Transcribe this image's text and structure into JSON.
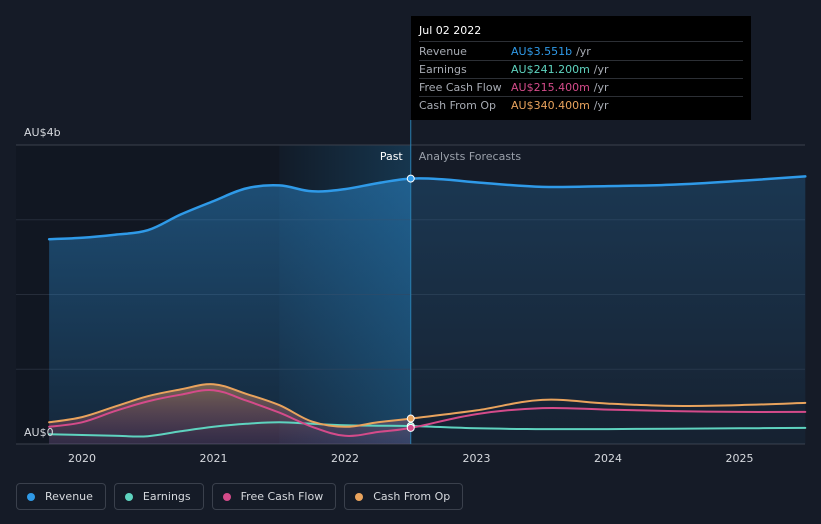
{
  "chart_data": {
    "type": "line",
    "title": "",
    "y_axis": {
      "top_label": "AU$4b",
      "bottom_label": "AU$0",
      "ylim": [
        0,
        4000
      ]
    },
    "x_ticks": [
      2020,
      2021,
      2022,
      2023,
      2024,
      2025
    ],
    "past_label": "Past",
    "forecast_label": "Analysts Forecasts",
    "divider_x": 2022.5,
    "series": [
      {
        "name": "Revenue",
        "color": "#2f9ae8",
        "points": [
          [
            2019.75,
            2740
          ],
          [
            2020.0,
            2760
          ],
          [
            2020.25,
            2800
          ],
          [
            2020.5,
            2860
          ],
          [
            2020.75,
            3070
          ],
          [
            2021.0,
            3250
          ],
          [
            2021.25,
            3420
          ],
          [
            2021.5,
            3460
          ],
          [
            2021.75,
            3380
          ],
          [
            2022.0,
            3410
          ],
          [
            2022.25,
            3490
          ],
          [
            2022.5,
            3551
          ],
          [
            2022.75,
            3540
          ],
          [
            2023.0,
            3500
          ],
          [
            2023.5,
            3440
          ],
          [
            2024.0,
            3450
          ],
          [
            2024.5,
            3470
          ],
          [
            2025.0,
            3520
          ],
          [
            2025.5,
            3580
          ]
        ]
      },
      {
        "name": "Earnings",
        "color": "#5ed3bf",
        "points": [
          [
            2019.75,
            130
          ],
          [
            2020.0,
            120
          ],
          [
            2020.25,
            110
          ],
          [
            2020.5,
            105
          ],
          [
            2020.75,
            170
          ],
          [
            2021.0,
            230
          ],
          [
            2021.25,
            270
          ],
          [
            2021.5,
            290
          ],
          [
            2021.75,
            270
          ],
          [
            2022.0,
            250
          ],
          [
            2022.25,
            245
          ],
          [
            2022.5,
            241.2
          ],
          [
            2023.0,
            210
          ],
          [
            2023.5,
            200
          ],
          [
            2024.0,
            200
          ],
          [
            2024.5,
            205
          ],
          [
            2025.0,
            210
          ],
          [
            2025.5,
            215
          ]
        ]
      },
      {
        "name": "Free Cash Flow",
        "color": "#d44b8a",
        "points": [
          [
            2019.75,
            230
          ],
          [
            2020.0,
            290
          ],
          [
            2020.25,
            440
          ],
          [
            2020.5,
            570
          ],
          [
            2020.75,
            660
          ],
          [
            2021.0,
            720
          ],
          [
            2021.25,
            580
          ],
          [
            2021.5,
            420
          ],
          [
            2021.75,
            230
          ],
          [
            2022.0,
            110
          ],
          [
            2022.25,
            160
          ],
          [
            2022.5,
            215.4
          ],
          [
            2023.0,
            400
          ],
          [
            2023.5,
            480
          ],
          [
            2024.0,
            460
          ],
          [
            2024.5,
            440
          ],
          [
            2025.0,
            430
          ],
          [
            2025.5,
            430
          ]
        ]
      },
      {
        "name": "Cash From Op",
        "color": "#e9a35d",
        "points": [
          [
            2019.75,
            290
          ],
          [
            2020.0,
            360
          ],
          [
            2020.25,
            500
          ],
          [
            2020.5,
            640
          ],
          [
            2020.75,
            730
          ],
          [
            2021.0,
            800
          ],
          [
            2021.25,
            670
          ],
          [
            2021.5,
            520
          ],
          [
            2021.75,
            300
          ],
          [
            2022.0,
            230
          ],
          [
            2022.25,
            290
          ],
          [
            2022.5,
            340.4
          ],
          [
            2023.0,
            450
          ],
          [
            2023.5,
            590
          ],
          [
            2024.0,
            540
          ],
          [
            2024.5,
            510
          ],
          [
            2025.0,
            520
          ],
          [
            2025.5,
            550
          ]
        ]
      }
    ]
  },
  "tooltip": {
    "date": "Jul 02 2022",
    "rows": [
      {
        "label": "Revenue",
        "value": "AU$3.551b",
        "unit": "/yr",
        "color": "#2f9ae8"
      },
      {
        "label": "Earnings",
        "value": "AU$241.200m",
        "unit": "/yr",
        "color": "#5ed3bf"
      },
      {
        "label": "Free Cash Flow",
        "value": "AU$215.400m",
        "unit": "/yr",
        "color": "#d44b8a"
      },
      {
        "label": "Cash From Op",
        "value": "AU$340.400m",
        "unit": "/yr",
        "color": "#e9a35d"
      }
    ]
  },
  "legend": [
    {
      "label": "Revenue",
      "color": "#2f9ae8"
    },
    {
      "label": "Earnings",
      "color": "#5ed3bf"
    },
    {
      "label": "Free Cash Flow",
      "color": "#d44b8a"
    },
    {
      "label": "Cash From Op",
      "color": "#e9a35d"
    }
  ]
}
